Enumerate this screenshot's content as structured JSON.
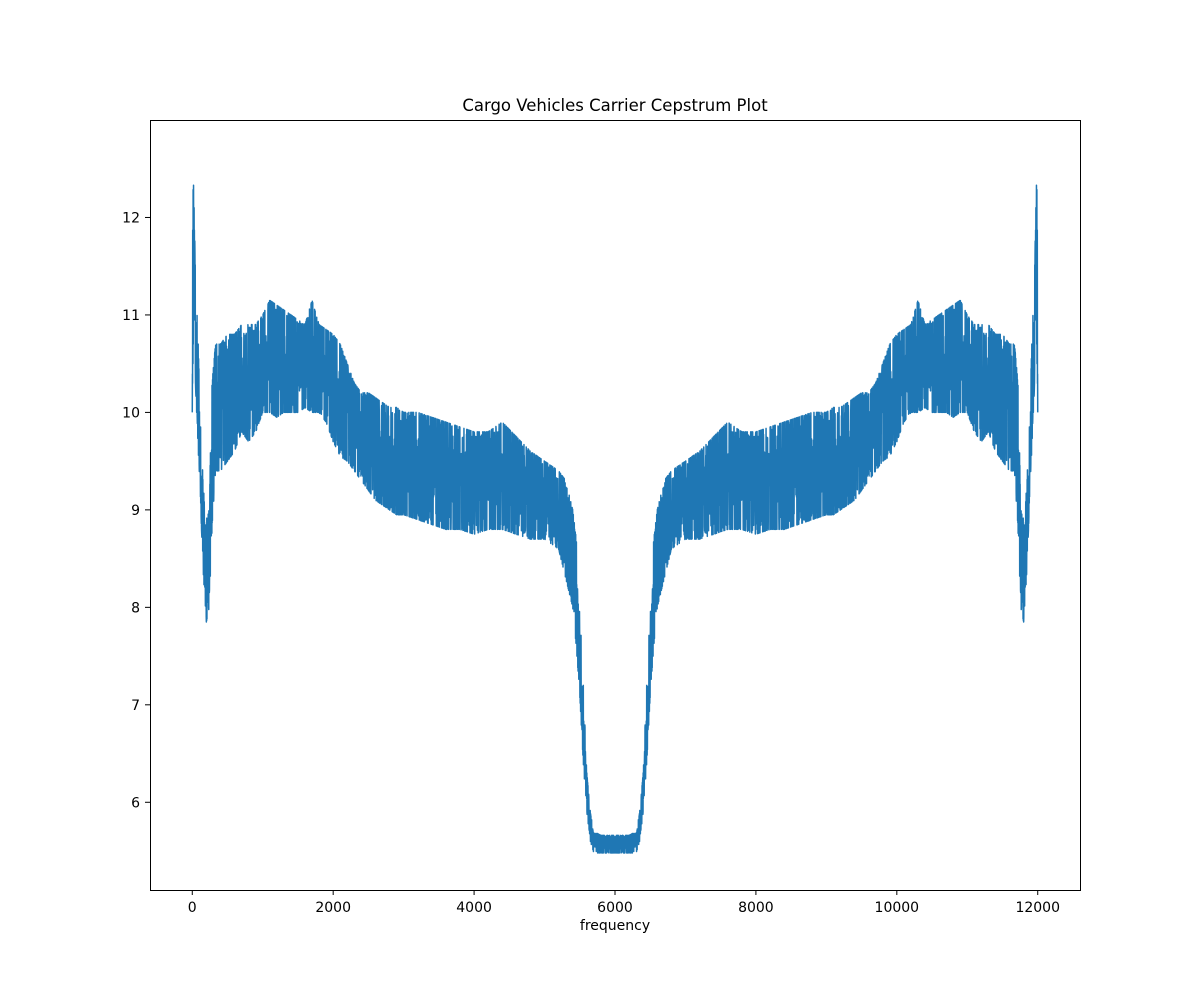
{
  "chart_data": {
    "type": "line",
    "title": "Cargo Vehicles Carrier Cepstrum Plot",
    "xlabel": "frequency",
    "ylabel": "",
    "xlim": [
      -600,
      12600
    ],
    "ylim": [
      5.1,
      13.0
    ],
    "x_ticks": [
      0,
      2000,
      4000,
      6000,
      8000,
      10000,
      12000
    ],
    "x_tick_labels": [
      "0",
      "2000",
      "4000",
      "6000",
      "8000",
      "10000",
      "12000"
    ],
    "y_ticks": [
      6,
      7,
      8,
      9,
      10,
      11,
      12
    ],
    "y_tick_labels": [
      "6",
      "7",
      "8",
      "9",
      "10",
      "11",
      "12"
    ],
    "grid": false,
    "legend": "none",
    "x_start": 0,
    "x_end": 12000,
    "symmetric_about": 6000,
    "series": [
      {
        "color": "#1f77b4",
        "envelope_half": {
          "x": [
            0,
            20,
            50,
            80,
            120,
            160,
            200,
            240,
            280,
            330,
            400,
            500,
            600,
            700,
            800,
            900,
            1000,
            1100,
            1200,
            1300,
            1400,
            1500,
            1600,
            1700,
            1800,
            1900,
            2000,
            2100,
            2200,
            2300,
            2400,
            2500,
            2600,
            2700,
            2800,
            2900,
            3000,
            3200,
            3400,
            3600,
            3800,
            4000,
            4200,
            4400,
            4600,
            4800,
            5000,
            5100,
            5200,
            5300,
            5400,
            5450,
            5500,
            5550,
            5600,
            5650,
            5700,
            5750,
            5800,
            5900,
            6000
          ],
          "low": [
            10.0,
            11.0,
            10.2,
            9.7,
            9.0,
            8.3,
            7.85,
            8.0,
            8.8,
            9.4,
            9.4,
            9.5,
            9.6,
            9.8,
            9.7,
            9.8,
            10.0,
            10.0,
            9.95,
            10.0,
            10.0,
            10.0,
            10.05,
            10.0,
            10.0,
            9.9,
            9.7,
            9.55,
            9.5,
            9.4,
            9.3,
            9.2,
            9.1,
            9.05,
            9.0,
            8.95,
            8.95,
            8.9,
            8.85,
            8.8,
            8.8,
            8.75,
            8.8,
            8.8,
            8.75,
            8.7,
            8.7,
            8.65,
            8.6,
            8.3,
            8.0,
            7.6,
            7.1,
            6.4,
            5.9,
            5.6,
            5.48,
            5.48,
            5.48,
            5.48,
            5.48
          ],
          "high": [
            12.6,
            12.3,
            11.3,
            10.8,
            9.8,
            9.2,
            8.9,
            9.0,
            10.3,
            10.7,
            10.7,
            10.8,
            10.8,
            10.9,
            10.9,
            10.9,
            11.0,
            11.15,
            11.1,
            11.05,
            11.0,
            10.95,
            10.9,
            11.15,
            10.9,
            10.85,
            10.8,
            10.7,
            10.5,
            10.3,
            10.2,
            10.2,
            10.15,
            10.1,
            10.05,
            10.05,
            10.0,
            10.0,
            9.95,
            9.9,
            9.85,
            9.8,
            9.8,
            9.9,
            9.75,
            9.6,
            9.5,
            9.45,
            9.4,
            9.3,
            9.0,
            8.7,
            8.0,
            7.2,
            6.3,
            5.9,
            5.68,
            5.68,
            5.66,
            5.66,
            5.66
          ]
        }
      }
    ]
  }
}
